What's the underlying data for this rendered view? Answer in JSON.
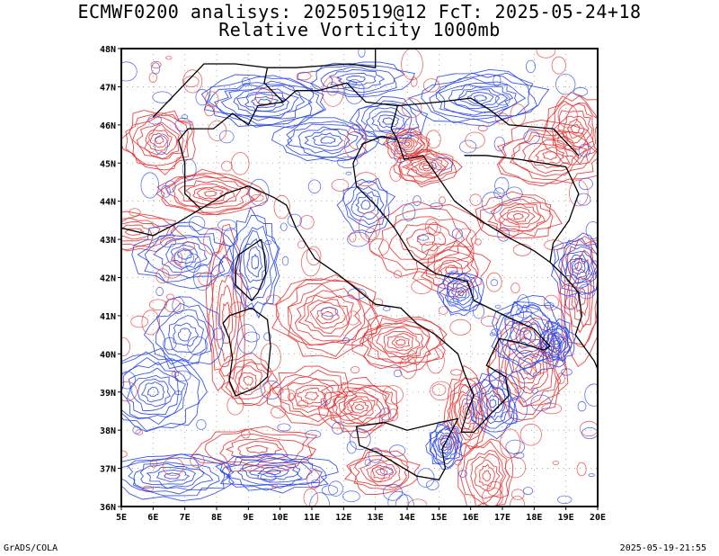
{
  "title_line1": "ECMWF0200 analisys: 20250519@12 FcT: 2025-05-24+18",
  "title_line2": "Relative Vorticity 1000mb",
  "footer_left": "GrADS/COLA",
  "footer_right": "2025-05-19-21:55",
  "lon_ticks": [
    "5E",
    "6E",
    "7E",
    "8E",
    "9E",
    "10E",
    "11E",
    "12E",
    "13E",
    "14E",
    "15E",
    "16E",
    "17E",
    "18E",
    "19E",
    "20E"
  ],
  "lat_ticks": [
    "48N",
    "47N",
    "46N",
    "45N",
    "44N",
    "43N",
    "42N",
    "41N",
    "40N",
    "39N",
    "38N",
    "37N",
    "36N"
  ],
  "colors": {
    "positive": "#e83232",
    "negative": "#2846e8",
    "coast": "#000000",
    "grid": "#9a9a9a"
  }
}
